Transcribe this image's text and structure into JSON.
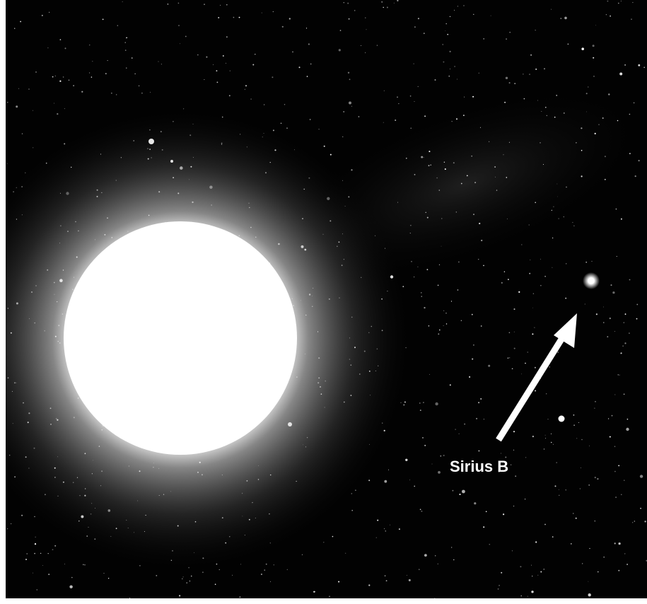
{
  "label": "Sirius B"
}
